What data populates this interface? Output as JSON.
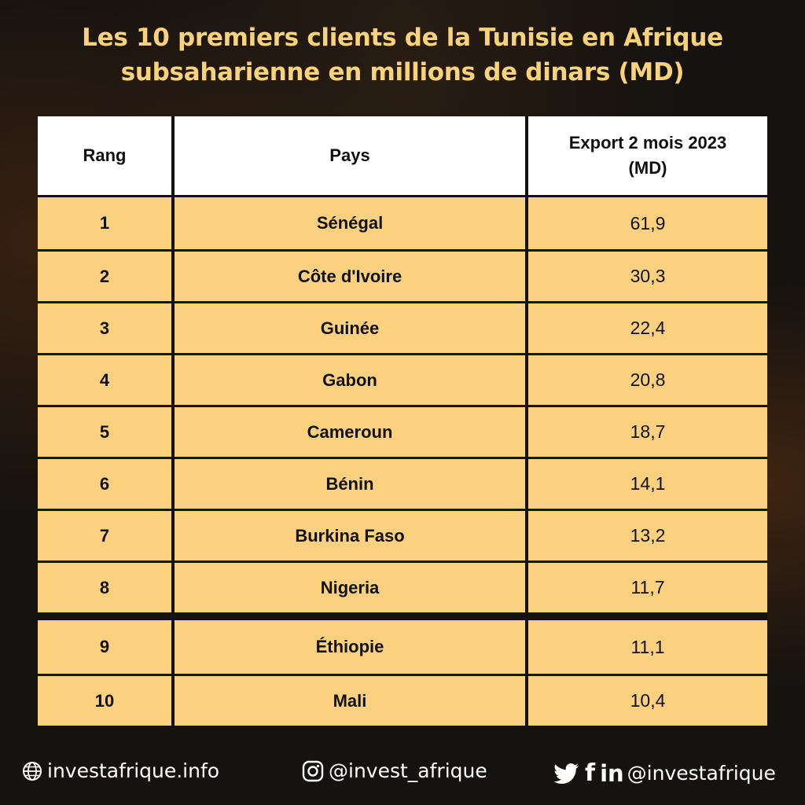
{
  "title": {
    "line1": "Les 10 premiers clients de la Tunisie en Afrique",
    "line2": "subsaharienne  en millions de dinars (MD)"
  },
  "chart_data": {
    "type": "table",
    "title": "Les 10 premiers clients de la Tunisie en Afrique subsaharienne  en millions de dinars (MD)",
    "columns": [
      "Rang",
      "Pays",
      "Export 2 mois 2023 (MD)"
    ],
    "header_lines": {
      "export_line1": "Export 2 mois 2023",
      "export_line2": "(MD)"
    },
    "rows": [
      {
        "rank": "1",
        "country": "Sénégal",
        "value": "61,9"
      },
      {
        "rank": "2",
        "country": "Côte d'Ivoire",
        "value": "30,3"
      },
      {
        "rank": "3",
        "country": "Guinée",
        "value": "22,4"
      },
      {
        "rank": "4",
        "country": "Gabon",
        "value": "20,8"
      },
      {
        "rank": "5",
        "country": "Cameroun",
        "value": "18,7"
      },
      {
        "rank": "6",
        "country": "Bénin",
        "value": "14,1"
      },
      {
        "rank": "7",
        "country": "Burkina Faso",
        "value": "13,2"
      },
      {
        "rank": "8",
        "country": "Nigeria",
        "value": "11,7"
      },
      {
        "rank": "9",
        "country": "Éthiopie",
        "value": "11,1"
      },
      {
        "rank": "10",
        "country": "Mali",
        "value": "10,4"
      }
    ]
  },
  "colors": {
    "title": "#f9d27c",
    "row_fill": "#fbd07e",
    "header_fill": "#ffffff",
    "background": "#151210"
  },
  "footer": {
    "website": "investafrique.info",
    "website_icon": "globe-icon",
    "instagram": "@invest_afrique",
    "instagram_icon": "instagram-icon",
    "social": "@investafrique",
    "social_icons": [
      "twitter-icon",
      "facebook-icon",
      "linkedin-icon"
    ],
    "social_glyphs": {
      "facebook": "f",
      "linkedin": "in"
    }
  }
}
